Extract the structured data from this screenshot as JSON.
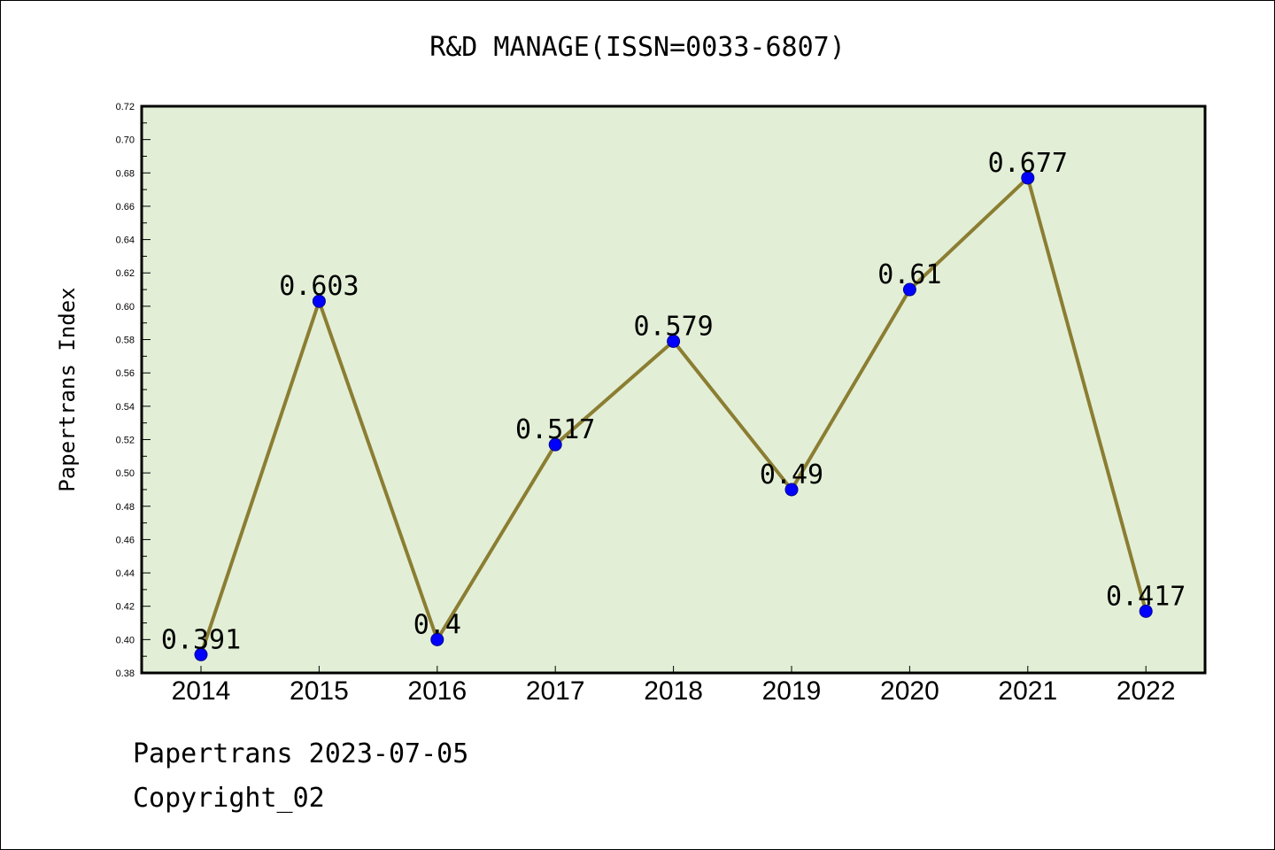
{
  "colors": {
    "plot_background": "#e2efd6",
    "line": "#8b7d32",
    "marker": "#0000ff"
  },
  "footer": {
    "source": "Papertrans 2023-07-05",
    "copyright": "Copyright_02"
  },
  "chart_data": {
    "type": "line",
    "title": "R&D MANAGE(ISSN=0033-6807)",
    "xlabel": "",
    "ylabel": "Papertrans Index",
    "categories": [
      "2014",
      "2015",
      "2016",
      "2017",
      "2018",
      "2019",
      "2020",
      "2021",
      "2022"
    ],
    "series": [
      {
        "values": [
          0.391,
          0.603,
          0.4,
          0.517,
          0.579,
          0.49,
          0.61,
          0.677,
          0.417
        ],
        "labels": [
          "0.391",
          "0.603",
          "0.4",
          "0.517",
          "0.579",
          "0.49",
          "0.61",
          "0.677",
          "0.417"
        ]
      }
    ],
    "ylim": [
      0.38,
      0.72
    ],
    "yticks": [
      "0.38",
      "0.40",
      "0.42",
      "0.44",
      "0.46",
      "0.48",
      "0.50",
      "0.52",
      "0.54",
      "0.56",
      "0.58",
      "0.60",
      "0.62",
      "0.64",
      "0.66",
      "0.68",
      "0.70",
      "0.72"
    ],
    "grid": false,
    "legend": false
  }
}
